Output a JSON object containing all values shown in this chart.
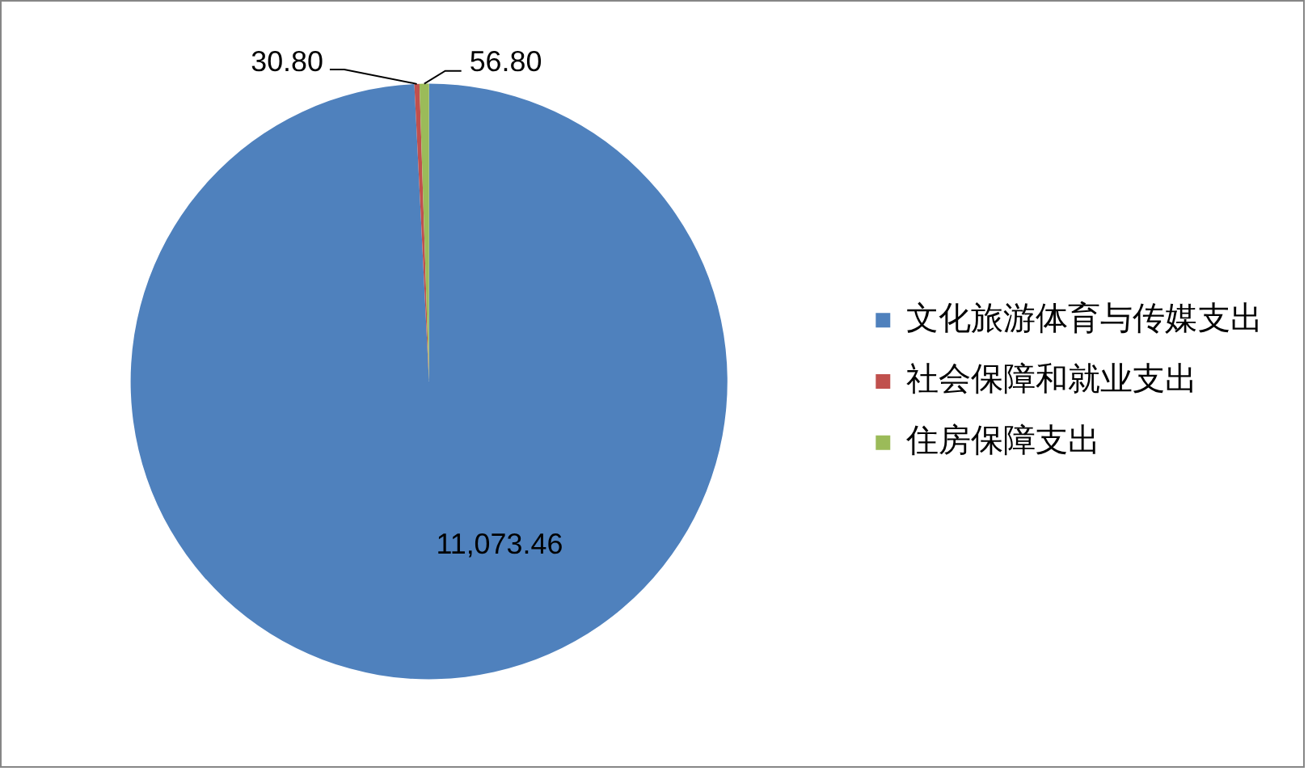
{
  "chart_data": {
    "type": "pie",
    "categories": [
      "文化旅游体育与传媒支出",
      "社会保障和就业支出",
      "住房保障支出"
    ],
    "values": [
      11073.46,
      30.8,
      56.8
    ],
    "colors": [
      "#4f81bd",
      "#c0504d",
      "#9bbb59"
    ],
    "value_labels": [
      "11,073.46",
      "30.80",
      "56.80"
    ],
    "legend": "right"
  }
}
